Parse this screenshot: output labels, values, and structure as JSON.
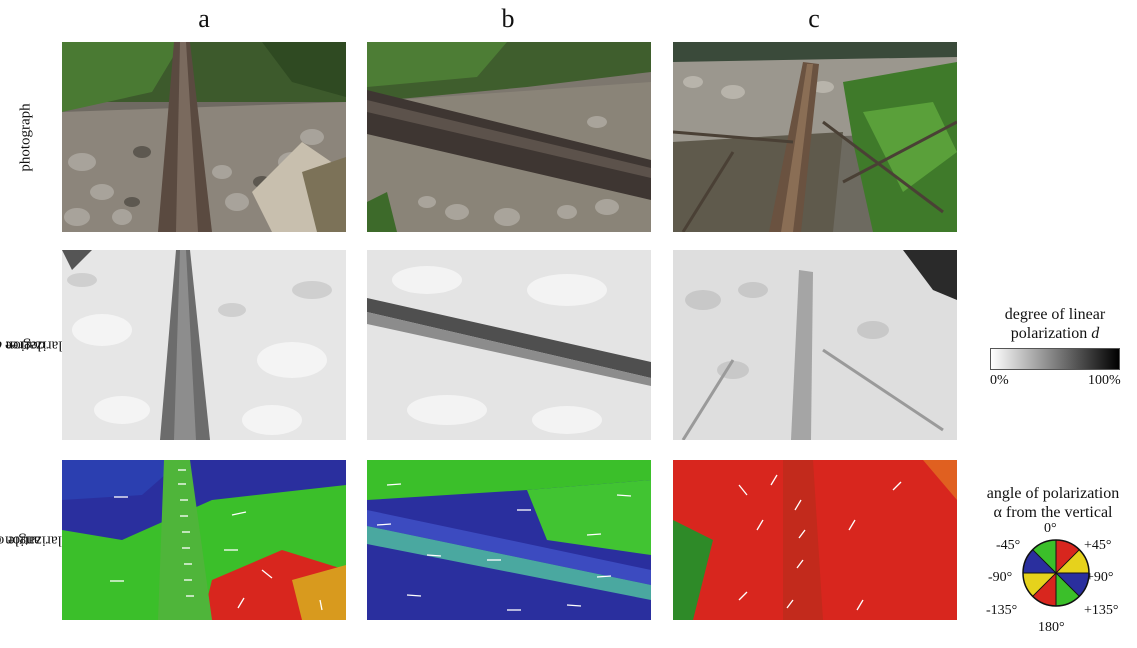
{
  "columns": [
    "a",
    "b",
    "c"
  ],
  "rows": {
    "photograph": "photograph",
    "degree_line1": "degree of",
    "degree_line2": "polarization",
    "degree_var": "d",
    "angle_line1": "angle of",
    "angle_line2": "polarization α"
  },
  "legend_dolp": {
    "line1": "degree of linear",
    "line2": "polarization",
    "var": "d",
    "min_label": "0%",
    "max_label": "100%"
  },
  "legend_aop": {
    "line1": "angle of polarization",
    "line2": "α from the vertical",
    "ticks": {
      "top": "0°",
      "top_left": "-45°",
      "top_right": "+45°",
      "left": "-90°",
      "right": "+90°",
      "bottom_left": "-135°",
      "bottom_right": "+135°",
      "bottom": "180°"
    }
  },
  "colors": {
    "green": "#3bbf2a",
    "blue": "#2a2f9e",
    "red": "#d8261e",
    "yellow": "#e6d21c"
  }
}
